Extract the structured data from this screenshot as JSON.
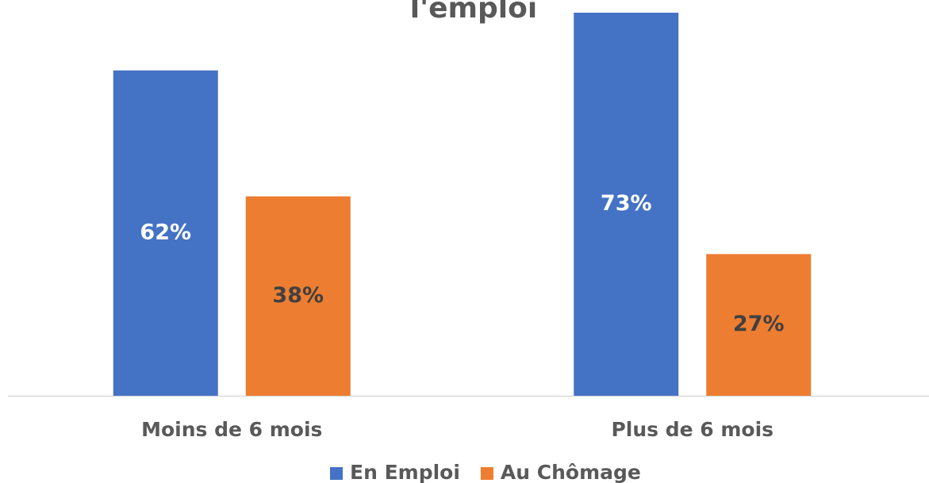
{
  "chart_data": {
    "type": "bar",
    "title": "l'emploi",
    "categories": [
      "Moins de 6 mois",
      "Plus de 6 mois"
    ],
    "series": [
      {
        "name": "En Emploi",
        "color": "#4472c4",
        "values": [
          62,
          73
        ],
        "value_labels": [
          "62%",
          "73%"
        ]
      },
      {
        "name": "Au Chômage",
        "color": "#ed7d31",
        "values": [
          38,
          27
        ],
        "value_labels": [
          "38%",
          "27%"
        ]
      }
    ]
  }
}
